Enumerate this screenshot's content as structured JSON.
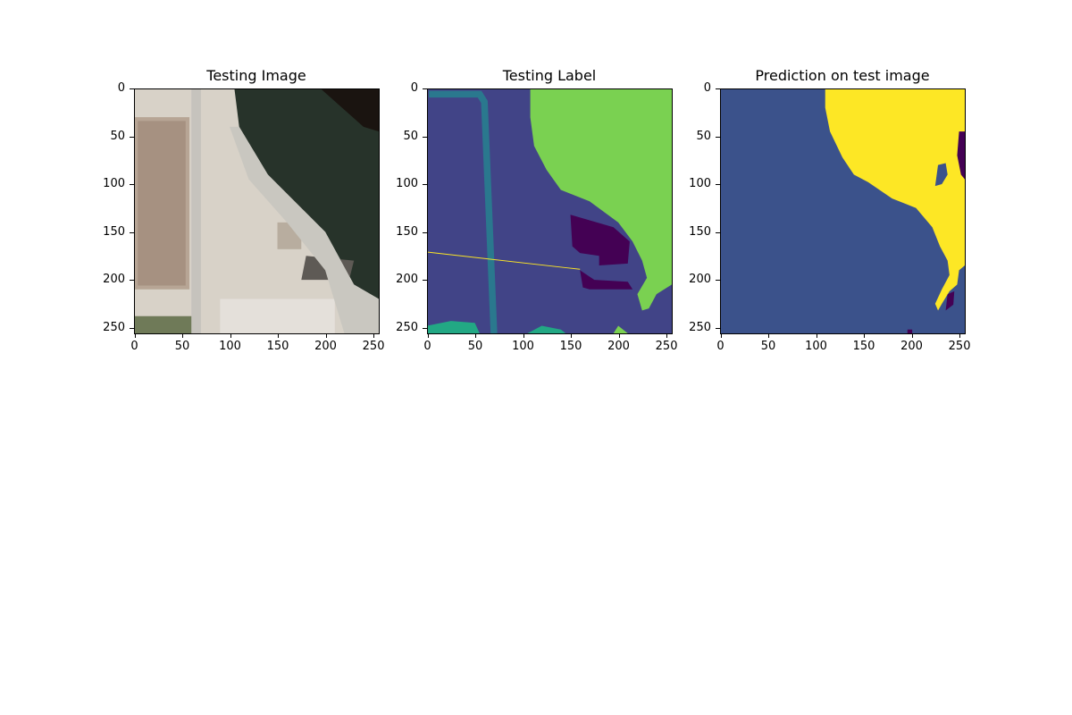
{
  "chart_data": [
    {
      "type": "heatmap",
      "title": "Testing Image",
      "x_ticks": [
        0,
        50,
        100,
        150,
        200,
        250
      ],
      "y_ticks": [
        0,
        50,
        100,
        150,
        200,
        250
      ],
      "xlim": [
        0,
        256
      ],
      "ylim": [
        256,
        0
      ],
      "content": "rgb satellite image"
    },
    {
      "type": "heatmap",
      "title": "Testing Label",
      "x_ticks": [
        0,
        50,
        100,
        150,
        200,
        250
      ],
      "y_ticks": [
        0,
        50,
        100,
        150,
        200,
        250
      ],
      "xlim": [
        0,
        256
      ],
      "ylim": [
        256,
        0
      ],
      "colormap": "viridis",
      "colors": [
        "#440154",
        "#414487",
        "#2a788e",
        "#22a884",
        "#7ad151",
        "#fde725"
      ]
    },
    {
      "type": "heatmap",
      "title": "Prediction on test image",
      "x_ticks": [
        0,
        50,
        100,
        150,
        200,
        250
      ],
      "y_ticks": [
        0,
        50,
        100,
        150,
        200,
        250
      ],
      "xlim": [
        0,
        256
      ],
      "ylim": [
        256,
        0
      ],
      "colormap": "viridis",
      "colors": [
        "#440154",
        "#3b528b",
        "#fde725"
      ]
    }
  ]
}
